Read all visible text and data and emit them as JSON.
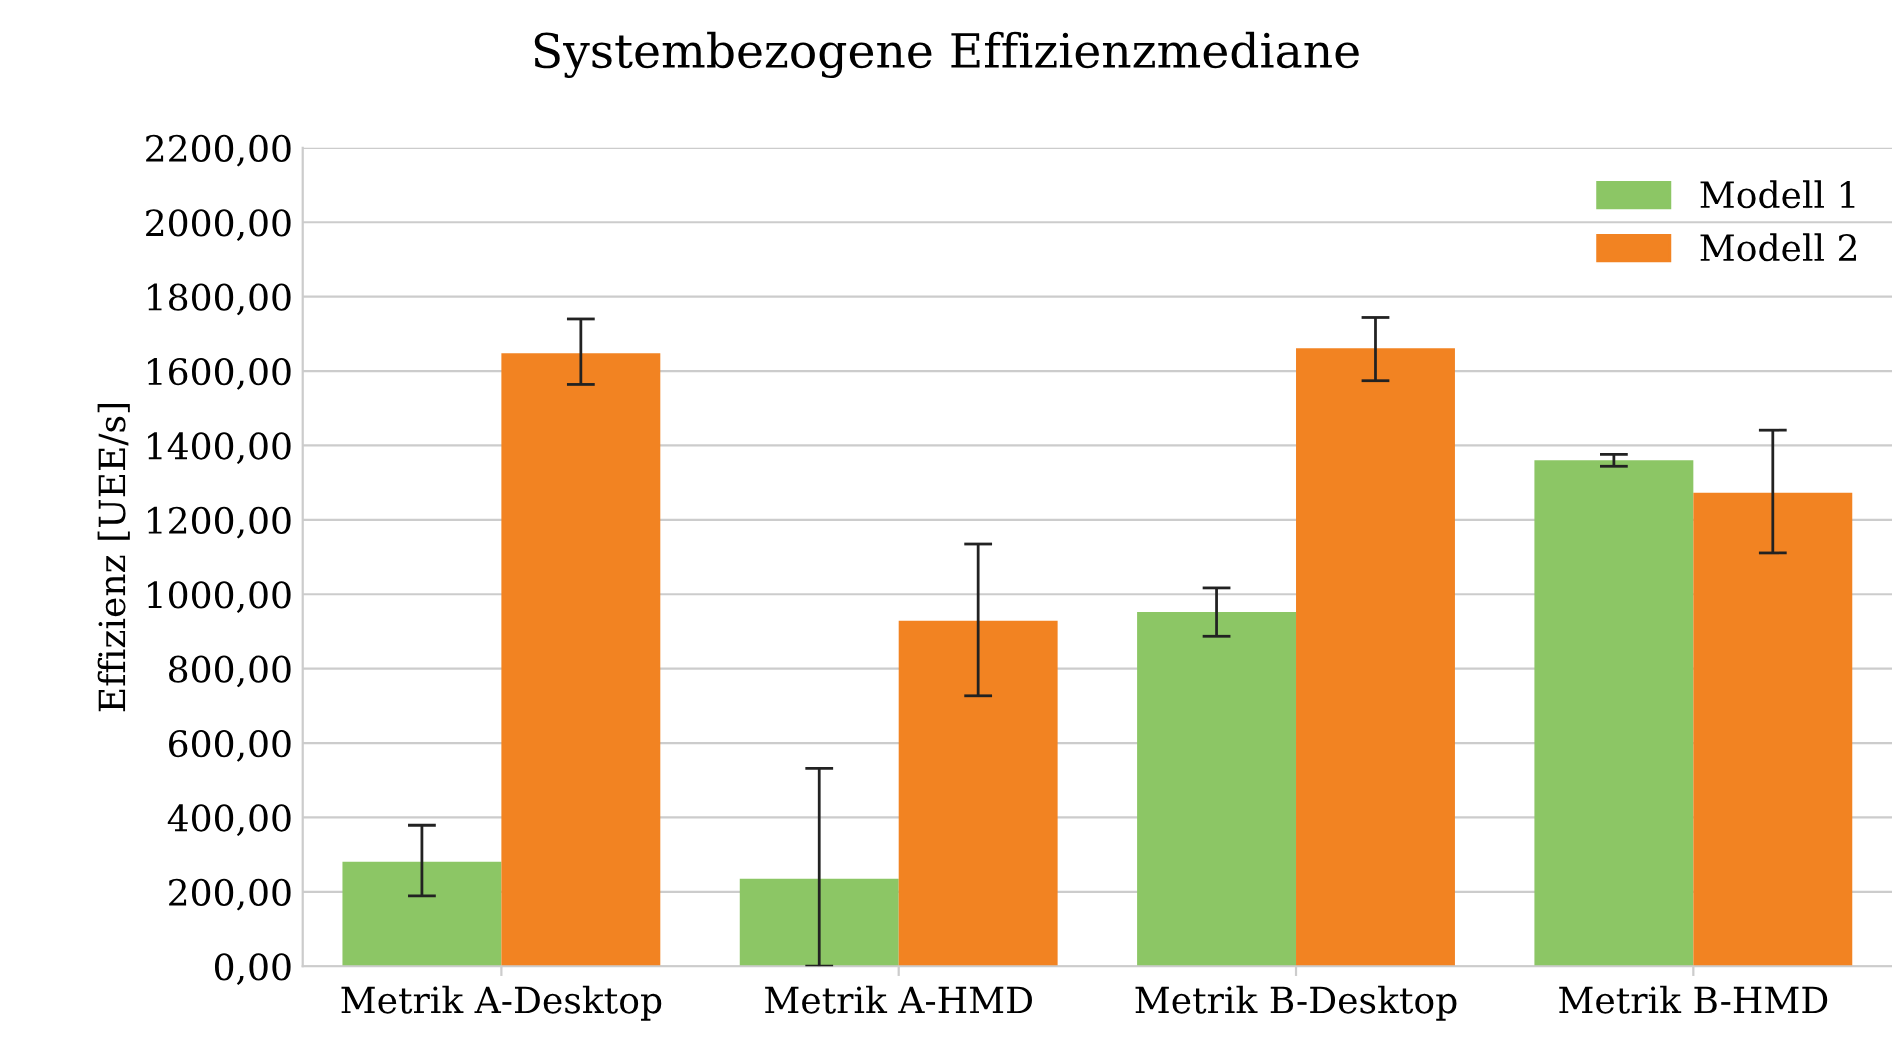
{
  "chart_data": {
    "type": "bar",
    "title": "Systembezogene Effizienzmediane",
    "ylabel": "Effizienz [UEE/s]",
    "categories": [
      "Metrik A-Desktop",
      "Metrik A-HMD",
      "Metrik B-Desktop",
      "Metrik B-HMD"
    ],
    "series": [
      {
        "name": "Modell 1",
        "color": "#8cc665",
        "values": [
          281,
          235,
          952,
          1360
        ],
        "errors": [
          [
            189,
            379
          ],
          [
            0,
            532
          ],
          [
            887,
            1017
          ],
          [
            1344,
            1376
          ]
        ]
      },
      {
        "name": "Modell 2",
        "color": "#f28322",
        "values": [
          1648,
          929,
          1661,
          1273
        ],
        "errors": [
          [
            1564,
            1740
          ],
          [
            727,
            1135
          ],
          [
            1574,
            1744
          ],
          [
            1111,
            1441
          ]
        ]
      }
    ],
    "ylim": [
      0,
      2200
    ],
    "yticks": [
      {
        "value": 0,
        "label": "0,00"
      },
      {
        "value": 200,
        "label": "200,00"
      },
      {
        "value": 400,
        "label": "400,00"
      },
      {
        "value": 600,
        "label": "600,00"
      },
      {
        "value": 800,
        "label": "800,00"
      },
      {
        "value": 1000,
        "label": "1000,00"
      },
      {
        "value": 1200,
        "label": "1200,00"
      },
      {
        "value": 1400,
        "label": "1400,00"
      },
      {
        "value": 1600,
        "label": "1600,00"
      },
      {
        "value": 1800,
        "label": "1800,00"
      },
      {
        "value": 2000,
        "label": "2000,00"
      },
      {
        "value": 2200,
        "label": "2200,00"
      }
    ],
    "grid": "y",
    "legend": "top right"
  }
}
